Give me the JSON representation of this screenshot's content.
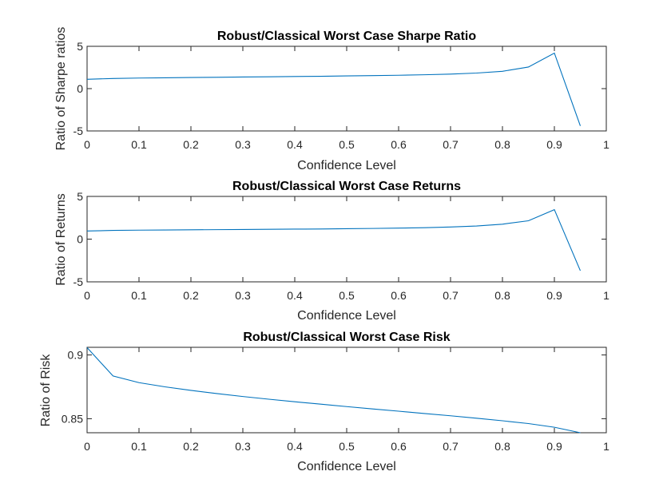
{
  "chart_data": [
    {
      "type": "line",
      "title": "Robust/Classical Worst Case Sharpe Ratio",
      "xlabel": "Confidence Level",
      "ylabel": "Ratio of Sharpe ratios",
      "xlim": [
        0,
        1
      ],
      "ylim": [
        -5,
        5
      ],
      "xticks": [
        "0",
        "0.1",
        "0.2",
        "0.3",
        "0.4",
        "0.5",
        "0.6",
        "0.7",
        "0.8",
        "0.9",
        "1"
      ],
      "yticks": [
        "-5",
        "0",
        "5"
      ],
      "grid": false,
      "x": [
        0,
        0.05,
        0.1,
        0.15,
        0.2,
        0.25,
        0.3,
        0.35,
        0.4,
        0.45,
        0.5,
        0.55,
        0.6,
        0.65,
        0.7,
        0.75,
        0.8,
        0.85,
        0.9,
        0.95
      ],
      "series": [
        {
          "values": [
            1.1,
            1.2,
            1.25,
            1.28,
            1.31,
            1.34,
            1.37,
            1.4,
            1.43,
            1.46,
            1.5,
            1.54,
            1.58,
            1.64,
            1.72,
            1.84,
            2.05,
            2.55,
            4.2,
            -4.4
          ],
          "color": "#0072bd"
        }
      ]
    },
    {
      "type": "line",
      "title": "Robust/Classical Worst Case Returns",
      "xlabel": "Confidence Level",
      "ylabel": "Ratio of Returns",
      "xlim": [
        0,
        1
      ],
      "ylim": [
        -5,
        5
      ],
      "xticks": [
        "0",
        "0.1",
        "0.2",
        "0.3",
        "0.4",
        "0.5",
        "0.6",
        "0.7",
        "0.8",
        "0.9",
        "1"
      ],
      "yticks": [
        "-5",
        "0",
        "5"
      ],
      "grid": false,
      "x": [
        0,
        0.05,
        0.1,
        0.15,
        0.2,
        0.25,
        0.3,
        0.35,
        0.4,
        0.45,
        0.5,
        0.55,
        0.6,
        0.65,
        0.7,
        0.75,
        0.8,
        0.85,
        0.9,
        0.95
      ],
      "series": [
        {
          "values": [
            0.95,
            1.02,
            1.05,
            1.07,
            1.09,
            1.11,
            1.13,
            1.15,
            1.17,
            1.19,
            1.22,
            1.25,
            1.29,
            1.34,
            1.42,
            1.54,
            1.75,
            2.15,
            3.45,
            -3.7
          ],
          "color": "#0072bd"
        }
      ]
    },
    {
      "type": "line",
      "title": "Robust/Classical Worst Case Risk",
      "xlabel": "Confidence Level",
      "ylabel": "Ratio of Risk",
      "xlim": [
        0,
        1
      ],
      "ylim": [
        0.839,
        0.906
      ],
      "xticks": [
        "0",
        "0.1",
        "0.2",
        "0.3",
        "0.4",
        "0.5",
        "0.6",
        "0.7",
        "0.8",
        "0.9",
        "1"
      ],
      "yticks": [
        "0.85",
        "0.9"
      ],
      "grid": false,
      "x": [
        0,
        0.05,
        0.1,
        0.15,
        0.2,
        0.25,
        0.3,
        0.35,
        0.4,
        0.45,
        0.5,
        0.55,
        0.6,
        0.65,
        0.7,
        0.75,
        0.8,
        0.85,
        0.9,
        0.95
      ],
      "series": [
        {
          "values": [
            0.9058,
            0.8835,
            0.8783,
            0.875,
            0.8722,
            0.8697,
            0.8674,
            0.8653,
            0.8633,
            0.8614,
            0.8595,
            0.8577,
            0.8559,
            0.8541,
            0.8523,
            0.8504,
            0.8484,
            0.8462,
            0.8433,
            0.839
          ],
          "color": "#0072bd"
        }
      ]
    }
  ]
}
